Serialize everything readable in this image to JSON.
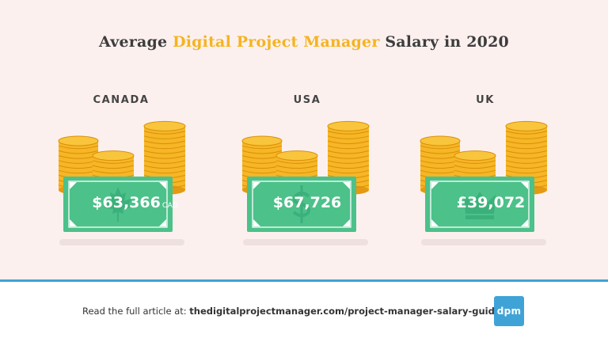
{
  "title": {
    "prefix": "Average",
    "highlight": "Digital Project Manager",
    "suffix": "Salary in 2020"
  },
  "colors": {
    "background": "#fcf0ef",
    "highlight": "#f5b41f",
    "coin": "#f6b625",
    "bill": "#4cc18a",
    "accent": "#3fa3d8"
  },
  "chart_data": {
    "type": "bar",
    "categories": [
      "CANADA",
      "USA",
      "UK"
    ],
    "values": [
      63366,
      67726,
      39072
    ],
    "labels": [
      "$63,366",
      "$67,726",
      "£39,072"
    ],
    "units": [
      "CAD",
      "",
      ""
    ],
    "icons": [
      "maple-leaf-icon",
      "dollar-sign-icon",
      "crown-icon"
    ]
  },
  "footer": {
    "lead": "Read the full article at:",
    "url": "thedigitalprojectmanager.com/project-manager-salary-guide/"
  },
  "logo": {
    "text": "dpm"
  }
}
